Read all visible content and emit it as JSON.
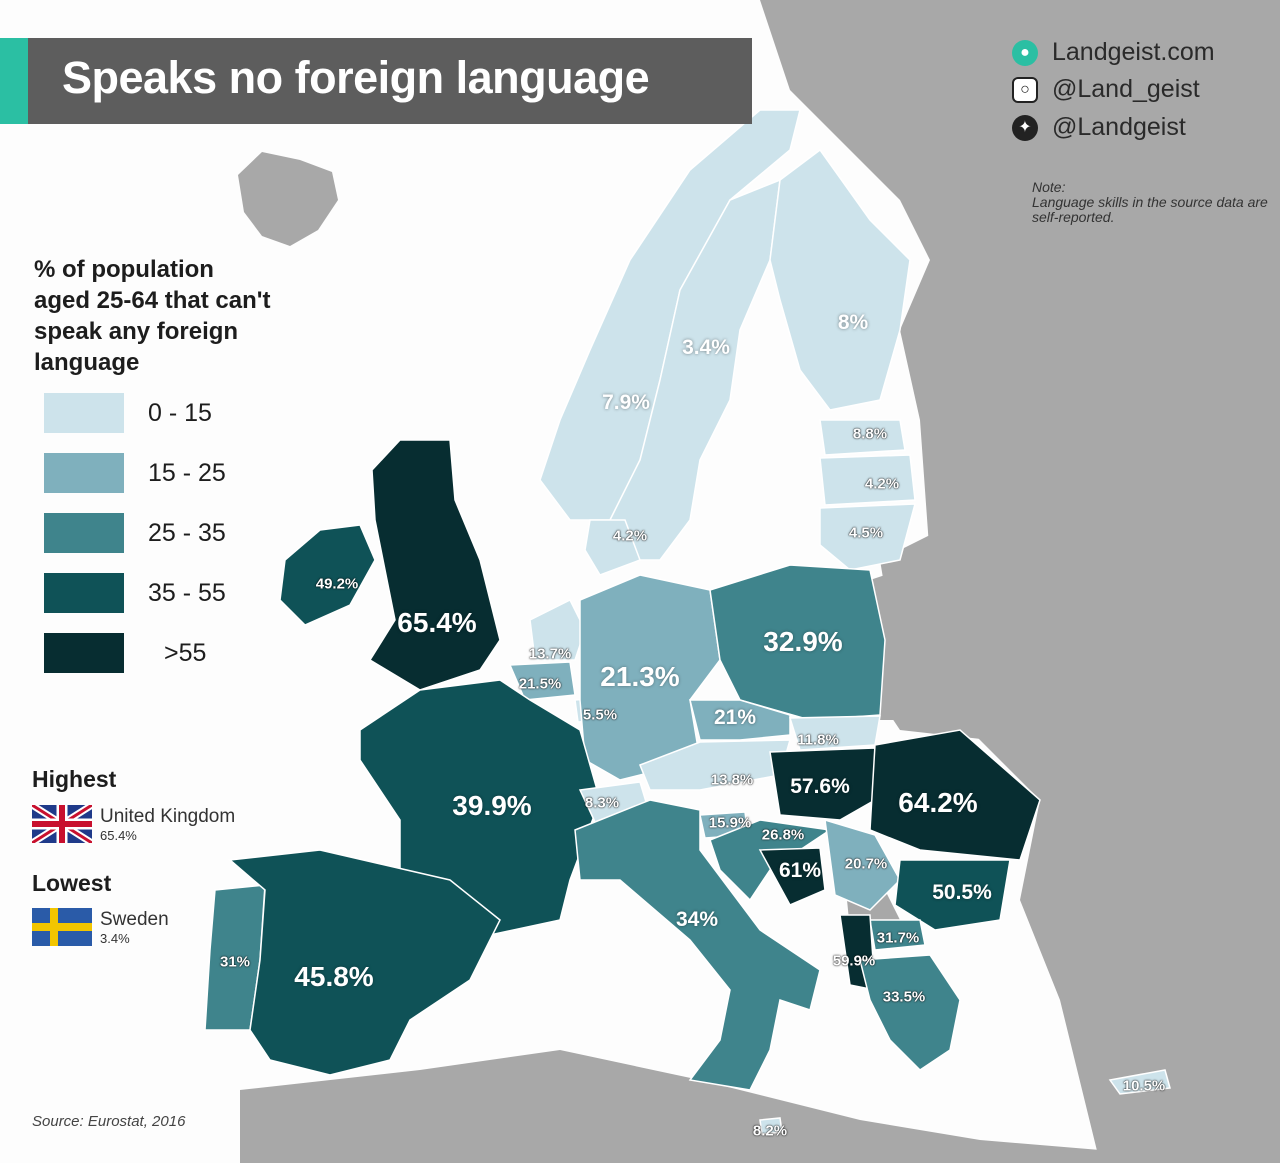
{
  "title": "Speaks no foreign language",
  "social": {
    "website": "Landgeist.com",
    "instagram": "@Land_geist",
    "twitter": "@Landgeist"
  },
  "note": {
    "label": "Note:",
    "text": "Language skills in the source data are self-reported."
  },
  "legend": {
    "title": "% of population aged 25-64 that can't speak any foreign language",
    "bins": [
      {
        "label": "0 - 15",
        "color": "#cde3eb"
      },
      {
        "label": "15 - 25",
        "color": "#7fb0bd"
      },
      {
        "label": "25 - 35",
        "color": "#3f848c"
      },
      {
        "label": "35 - 55",
        "color": "#0f5257"
      },
      {
        "label": ">55",
        "color": "#072d31"
      }
    ],
    "no_data_color": "#a8a8a8"
  },
  "highest": {
    "heading": "Highest",
    "country": "United Kingdom",
    "value": "65.4%"
  },
  "lowest": {
    "heading": "Lowest",
    "country": "Sweden",
    "value": "3.4%"
  },
  "source": "Source: Eurostat, 2016",
  "map_labels": [
    {
      "id": "norway",
      "text": "7.9%",
      "bin": 0
    },
    {
      "id": "sweden",
      "text": "3.4%",
      "bin": 0
    },
    {
      "id": "finland",
      "text": "8%",
      "bin": 0
    },
    {
      "id": "estonia",
      "text": "8.8%",
      "bin": 0
    },
    {
      "id": "latvia",
      "text": "4.2%",
      "bin": 0
    },
    {
      "id": "lithuania",
      "text": "4.5%",
      "bin": 0
    },
    {
      "id": "denmark",
      "text": "4.2%",
      "bin": 0
    },
    {
      "id": "ireland",
      "text": "49.2%",
      "bin": 3
    },
    {
      "id": "united-kingdom",
      "text": "65.4%",
      "bin": 4
    },
    {
      "id": "netherlands",
      "text": "13.7%",
      "bin": 0
    },
    {
      "id": "belgium",
      "text": "21.5%",
      "bin": 1
    },
    {
      "id": "luxembourg",
      "text": "5.5%",
      "bin": 0
    },
    {
      "id": "germany",
      "text": "21.3%",
      "bin": 1
    },
    {
      "id": "poland",
      "text": "32.9%",
      "bin": 2
    },
    {
      "id": "czechia",
      "text": "21%",
      "bin": 1
    },
    {
      "id": "slovakia",
      "text": "11.8%",
      "bin": 0
    },
    {
      "id": "austria",
      "text": "13.8%",
      "bin": 0
    },
    {
      "id": "hungary",
      "text": "57.6%",
      "bin": 4
    },
    {
      "id": "romania",
      "text": "64.2%",
      "bin": 4
    },
    {
      "id": "france",
      "text": "39.9%",
      "bin": 3
    },
    {
      "id": "switzerland",
      "text": "8.3%",
      "bin": 0
    },
    {
      "id": "slovenia",
      "text": "15.9%",
      "bin": 1
    },
    {
      "id": "croatia",
      "text": "26.8%",
      "bin": 2
    },
    {
      "id": "bosnia",
      "text": "61%",
      "bin": 4
    },
    {
      "id": "serbia",
      "text": "20.7%",
      "bin": 1
    },
    {
      "id": "bulgaria",
      "text": "50.5%",
      "bin": 3
    },
    {
      "id": "italy",
      "text": "34%",
      "bin": 2
    },
    {
      "id": "north-macedonia",
      "text": "31.7%",
      "bin": 2
    },
    {
      "id": "albania",
      "text": "59.9%",
      "bin": 4
    },
    {
      "id": "greece",
      "text": "33.5%",
      "bin": 2
    },
    {
      "id": "portugal",
      "text": "31%",
      "bin": 2
    },
    {
      "id": "spain",
      "text": "45.8%",
      "bin": 3
    },
    {
      "id": "cyprus",
      "text": "10.5%",
      "bin": 0
    },
    {
      "id": "malta",
      "text": "8.2%",
      "bin": 0
    }
  ]
}
